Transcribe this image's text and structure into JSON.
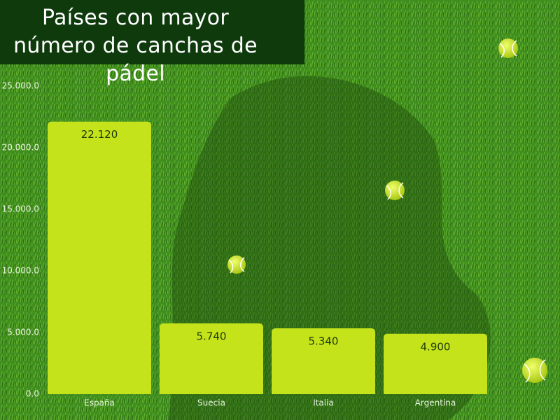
{
  "chart_data": {
    "type": "bar",
    "title": "Países con mayor número de canchas de pádel",
    "categories": [
      "España",
      "Suecia",
      "Italia",
      "Argentina"
    ],
    "values": [
      22120,
      5740,
      5340,
      4900
    ],
    "value_labels": [
      "22.120",
      "5.740",
      "5.340",
      "4.900"
    ],
    "color": "#c4e31a",
    "ylim": [
      0,
      25000
    ],
    "yticks": [
      {
        "value": 0,
        "label": "0.0"
      },
      {
        "value": 5000,
        "label": "5.000.0"
      },
      {
        "value": 10000,
        "label": "10.000.0"
      },
      {
        "value": 15000,
        "label": "15.000.0"
      },
      {
        "value": 20000,
        "label": "20.000.0"
      },
      {
        "value": 25000,
        "label": "25.000.0"
      }
    ]
  }
}
